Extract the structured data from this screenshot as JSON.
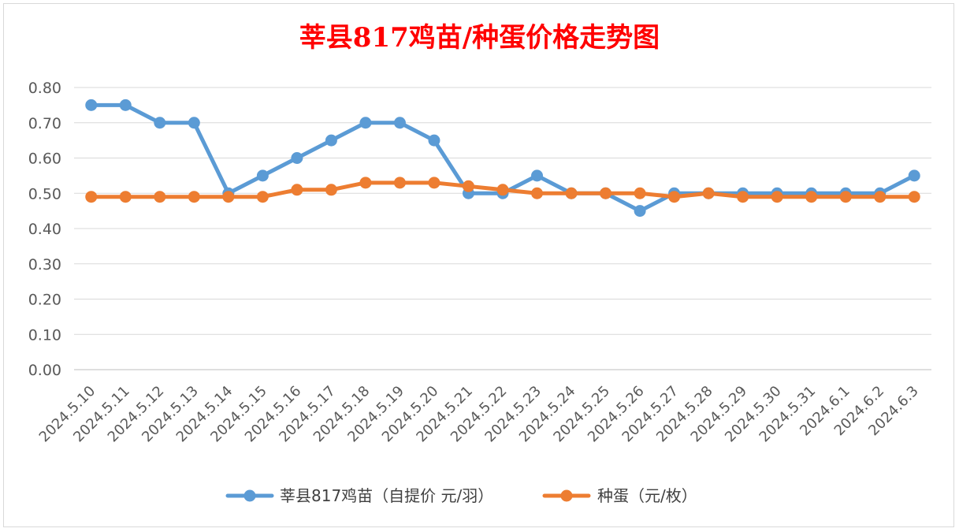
{
  "chart_data": {
    "type": "line",
    "title": "莘县817鸡苗/种蛋价格走势图",
    "categories": [
      "2024.5.10",
      "2024.5.11",
      "2024.5.12",
      "2024.5.13",
      "2024.5.14",
      "2024.5.15",
      "2024.5.16",
      "2024.5.17",
      "2024.5.18",
      "2024.5.19",
      "2024.5.20",
      "2024.5.21",
      "2024.5.22",
      "2024.5.23",
      "2024.5.24",
      "2024.5.25",
      "2024.5.26",
      "2024.5.27",
      "2024.5.28",
      "2024.5.29",
      "2024.5.30",
      "2024.5.31",
      "2024.6.1",
      "2024.6.2",
      "2024.6.3"
    ],
    "series": [
      {
        "name": "莘县817鸡苗（自提价 元/羽）",
        "color": "#5b9bd5",
        "values": [
          0.75,
          0.75,
          0.7,
          0.7,
          0.5,
          0.55,
          0.6,
          0.65,
          0.7,
          0.7,
          0.65,
          0.5,
          0.5,
          0.55,
          0.5,
          0.5,
          0.45,
          0.5,
          0.5,
          0.5,
          0.5,
          0.5,
          0.5,
          0.5,
          0.55
        ]
      },
      {
        "name": "种蛋（元/枚）",
        "color": "#ed7d31",
        "values": [
          0.49,
          0.49,
          0.49,
          0.49,
          0.49,
          0.49,
          0.51,
          0.51,
          0.53,
          0.53,
          0.53,
          0.52,
          0.51,
          0.5,
          0.5,
          0.5,
          0.5,
          0.49,
          0.5,
          0.49,
          0.49,
          0.49,
          0.49,
          0.49,
          0.49
        ]
      }
    ],
    "ylim": [
      0,
      0.8
    ],
    "yticks": [
      "0.00",
      "0.10",
      "0.20",
      "0.30",
      "0.40",
      "0.50",
      "0.60",
      "0.70",
      "0.80"
    ],
    "grid": true,
    "legend_position": "bottom"
  }
}
